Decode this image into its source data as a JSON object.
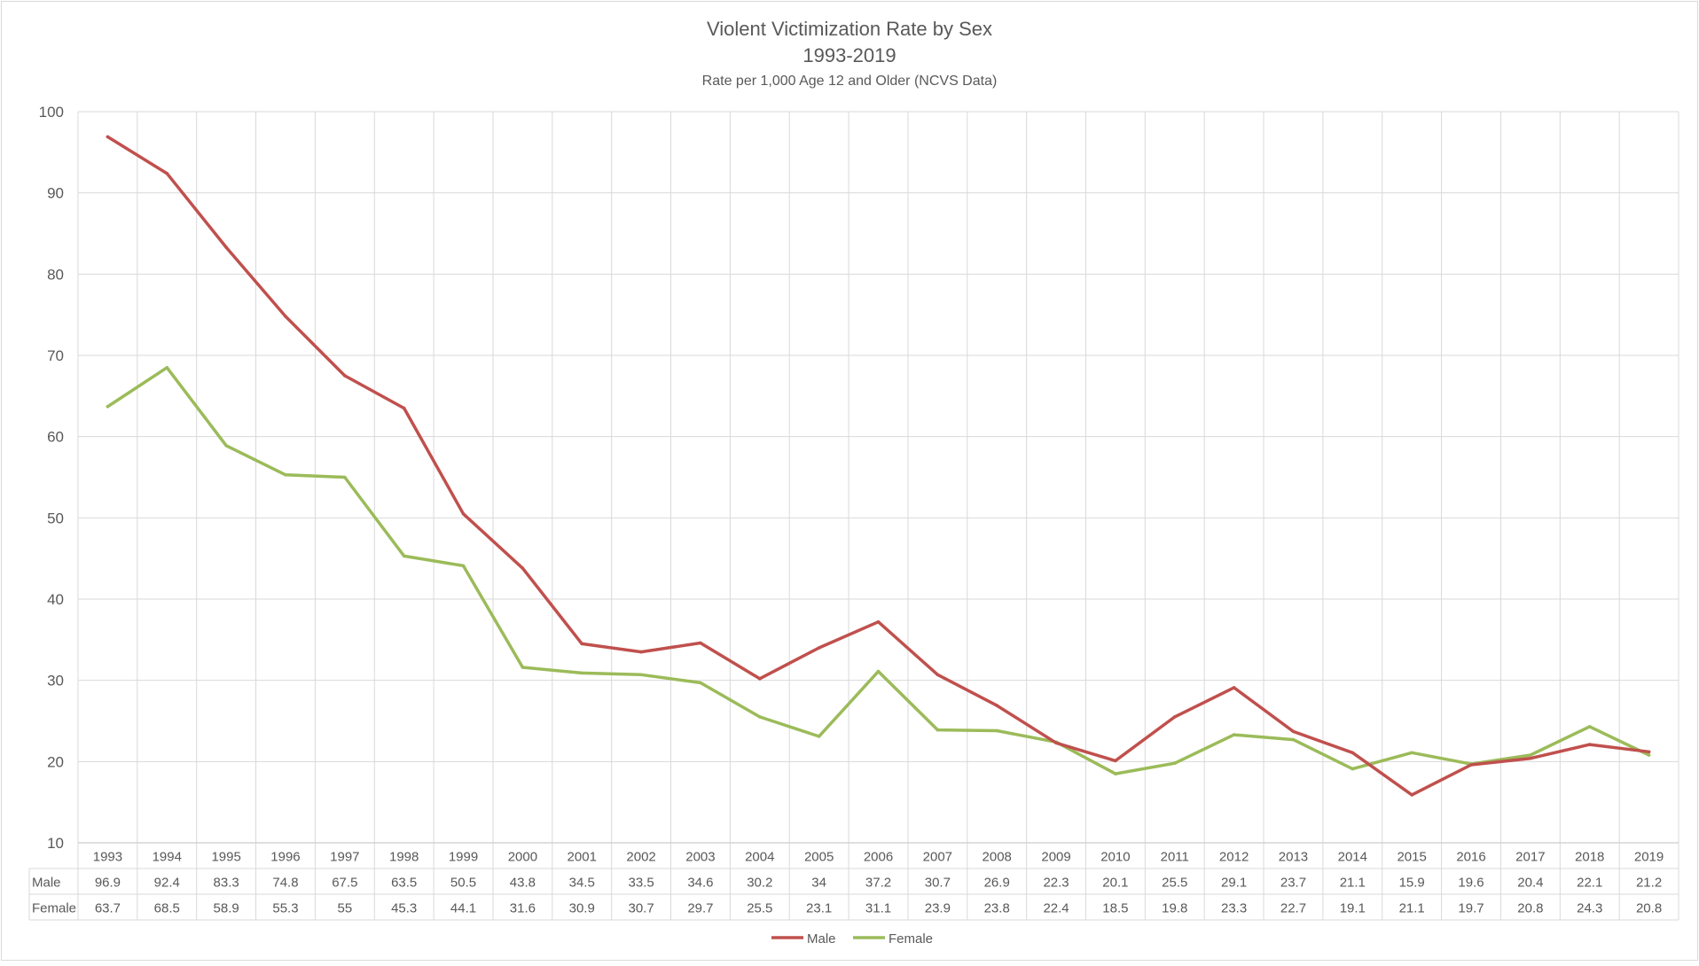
{
  "chart_data": {
    "type": "line",
    "title": "Violent Victimization Rate by Sex",
    "title_line2": "1993-2019",
    "subtitle": "Rate per 1,000 Age 12 and Older (NCVS Data)",
    "xlabel": "",
    "ylabel": "",
    "ylim": [
      10,
      100
    ],
    "yticks": [
      "10",
      "20",
      "30",
      "40",
      "50",
      "60",
      "70",
      "80",
      "90",
      "100"
    ],
    "grid": true,
    "legend": "bottom",
    "data_table": true,
    "categories": [
      "1993",
      "1994",
      "1995",
      "1996",
      "1997",
      "1998",
      "1999",
      "2000",
      "2001",
      "2002",
      "2003",
      "2004",
      "2005",
      "2006",
      "2007",
      "2008",
      "2009",
      "2010",
      "2011",
      "2012",
      "2013",
      "2014",
      "2015",
      "2016",
      "2017",
      "2018",
      "2019"
    ],
    "series": [
      {
        "name": "Male",
        "color": "#c0504d",
        "values": [
          96.9,
          92.4,
          83.3,
          74.8,
          67.5,
          63.5,
          50.5,
          43.8,
          34.5,
          33.5,
          34.6,
          30.2,
          34,
          37.2,
          30.7,
          26.9,
          22.3,
          20.1,
          25.5,
          29.1,
          23.7,
          21.1,
          15.9,
          19.6,
          20.4,
          22.1,
          21.2
        ]
      },
      {
        "name": "Female",
        "color": "#9bbb59",
        "values": [
          63.7,
          68.5,
          58.9,
          55.3,
          55,
          45.3,
          44.1,
          31.6,
          30.9,
          30.7,
          29.7,
          25.5,
          23.1,
          31.1,
          23.9,
          23.8,
          22.4,
          18.5,
          19.8,
          23.3,
          22.7,
          19.1,
          21.1,
          19.7,
          20.8,
          24.3,
          20.8
        ]
      }
    ]
  }
}
